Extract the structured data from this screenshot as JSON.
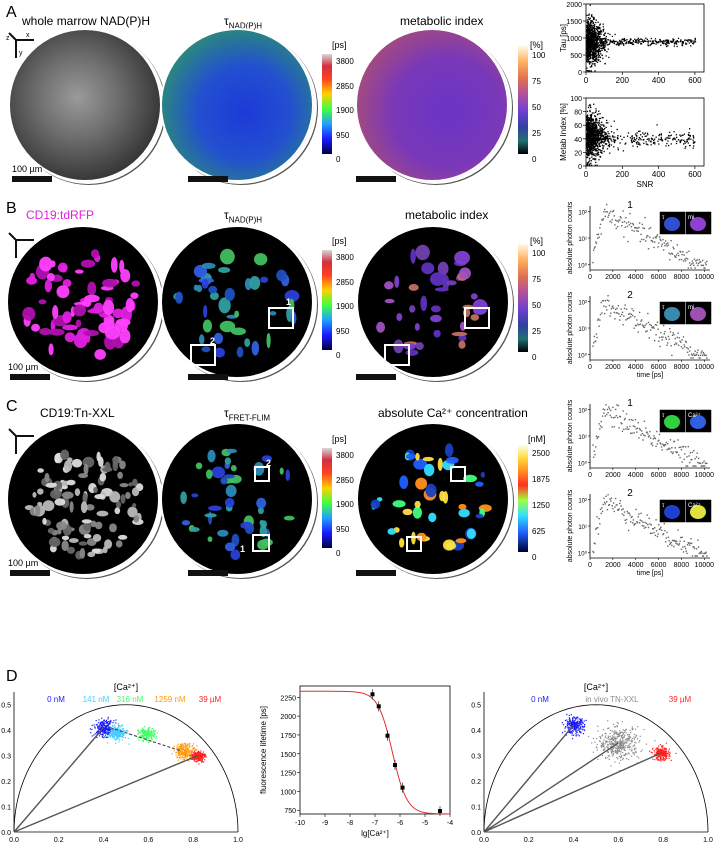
{
  "colors": {
    "background": "#ffffff",
    "magenta": "#e020e0",
    "blue": "#1a1aff",
    "cyan": "#40d0ff",
    "green": "#40ff60",
    "orange": "#ff9a10",
    "red": "#ff2020",
    "grey": "#8c8c8c"
  },
  "panel_a": {
    "letter": "A",
    "img1_title": "whole marrow NAD(P)H",
    "img2_title_main": "τ",
    "img2_title_sub": "NAD(P)H",
    "img3_title": "metabolic index",
    "scale_bar": "100 µm",
    "cbar1_unit": "[ps]",
    "cbar1_ticks": [
      "3800",
      "2850",
      "1900",
      "950",
      "0"
    ],
    "cbar2_unit": "[%]",
    "cbar2_ticks": [
      "100",
      "75",
      "50",
      "25",
      "0"
    ],
    "axis_x": "x",
    "axis_y": "y",
    "axis_z": "z"
  },
  "panel_b": {
    "letter": "B",
    "img1_title": "CD19:tdRFP",
    "img2_title_main": "τ",
    "img2_title_sub": "NAD(P)H",
    "img3_title": "metabolic index",
    "scale_bar": "100 µm",
    "roi1": "1",
    "roi2": "2",
    "cbar1_unit": "[ps]",
    "cbar1_ticks": [
      "3800",
      "2850",
      "1900",
      "950",
      "0"
    ],
    "cbar2_unit": "[%]",
    "cbar2_ticks": [
      "100",
      "75",
      "50",
      "25",
      "0"
    ],
    "inset_tau": "τ",
    "inset_mi": "mi"
  },
  "panel_c": {
    "letter": "C",
    "img1_title": "CD19:Tn-XXL",
    "img2_title_main": "τ",
    "img2_title_sub": "FRET-FLIM",
    "img3_title": "absolute Ca²⁺ concentration",
    "scale_bar": "100 µm",
    "roi1": "1",
    "roi2": "2",
    "cbar1_unit": "[ps]",
    "cbar1_ticks": [
      "3800",
      "2850",
      "1900",
      "950",
      "0"
    ],
    "cbar2_unit": "[nM]",
    "cbar2_ticks": [
      "2500",
      "1875",
      "1250",
      "625",
      "0"
    ],
    "inset_tau": "τ",
    "inset_ca": "Ca²⁺"
  },
  "panel_d": {
    "letter": "D",
    "phasor1_title": "[Ca²⁺]",
    "phasor1_legend": [
      "0 nM",
      "141 nM",
      "316 nM",
      "1259 nM",
      "39 µM"
    ],
    "phasor2_title": "[Ca²⁺]",
    "phasor2_legend": [
      "0 nM",
      "in vivo TN-XXL",
      "39 µM"
    ],
    "phasor_x_ticks": [
      "0.0",
      "0.2",
      "0.4",
      "0.6",
      "0.8",
      "1.0"
    ],
    "phasor_y_ticks": [
      "0.0",
      "0.1",
      "0.2",
      "0.3",
      "0.4",
      "0.5"
    ]
  },
  "chart_data": [
    {
      "type": "scatter",
      "id": "a-tau-snr",
      "ylabel": "Tau [ps]",
      "xlabel": "",
      "xlim": [
        0,
        650
      ],
      "ylim": [
        0,
        2000
      ],
      "x_ticks": [
        "0",
        "200",
        "400",
        "600"
      ],
      "y_ticks": [
        "0",
        "500",
        "1000",
        "1500",
        "2000"
      ],
      "description_values": "dense cloud near x 0-100, y 200-2000; tail along y≈900 to x≈600"
    },
    {
      "type": "scatter",
      "id": "a-metab-snr",
      "ylabel": "Metab Index [%]",
      "xlabel": "SNR",
      "xlim": [
        0,
        650
      ],
      "ylim": [
        0,
        100
      ],
      "x_ticks": [
        "0",
        "200",
        "400",
        "600"
      ],
      "y_ticks": [
        "0",
        "20",
        "40",
        "60",
        "80",
        "100"
      ]
    },
    {
      "type": "scatter",
      "id": "b-decay-1",
      "label": "1",
      "ylabel": "absolute photon counts",
      "xlim": [
        0,
        10500
      ],
      "x_ticks": [
        "0",
        "2000",
        "4000",
        "6000",
        "8000",
        "10000"
      ],
      "y_ticks": [
        "10⁰",
        "10¹",
        "10²"
      ]
    },
    {
      "type": "scatter",
      "id": "b-decay-2",
      "label": "2",
      "ylabel": "absolute photon counts",
      "xlabel": "time [ps]",
      "xlim": [
        0,
        10500
      ],
      "x_ticks": [
        "0",
        "2000",
        "4000",
        "6000",
        "8000",
        "10000"
      ],
      "y_ticks": [
        "10⁰",
        "10¹",
        "10²"
      ]
    },
    {
      "type": "scatter",
      "id": "c-decay-1",
      "label": "1",
      "ylabel": "absolute photon counts",
      "xlim": [
        0,
        10500
      ],
      "x_ticks": [
        "0",
        "2000",
        "4000",
        "6000",
        "8000",
        "10000"
      ],
      "y_ticks": [
        "10⁰",
        "10¹",
        "10²"
      ]
    },
    {
      "type": "scatter",
      "id": "c-decay-2",
      "label": "2",
      "ylabel": "absolute photon counts",
      "xlabel": "time [ps]",
      "xlim": [
        0,
        10500
      ],
      "x_ticks": [
        "0",
        "2000",
        "4000",
        "6000",
        "8000",
        "10000"
      ],
      "y_ticks": [
        "10⁰",
        "10¹",
        "10²"
      ]
    },
    {
      "type": "line",
      "id": "d-calibration",
      "xlabel": "lg[Ca²⁺]",
      "ylabel": "fluorescence lifetime [ps]",
      "xlim": [
        -10,
        -4
      ],
      "ylim": [
        700,
        2400
      ],
      "x_ticks": [
        "-10",
        "-9",
        "-8",
        "-7",
        "-6",
        "-5",
        "-4"
      ],
      "y_ticks": [
        "750",
        "1000",
        "1250",
        "1500",
        "1750",
        "2000",
        "2250"
      ],
      "points": [
        {
          "x": -7.1,
          "y": 2290
        },
        {
          "x": -6.85,
          "y": 2130
        },
        {
          "x": -6.5,
          "y": 1740
        },
        {
          "x": -6.2,
          "y": 1350
        },
        {
          "x": -5.9,
          "y": 1050
        },
        {
          "x": -4.4,
          "y": 740
        }
      ],
      "fit": {
        "top": 2330,
        "bottom": 700,
        "logEC50": -6.3,
        "hill": 1.5
      }
    }
  ]
}
